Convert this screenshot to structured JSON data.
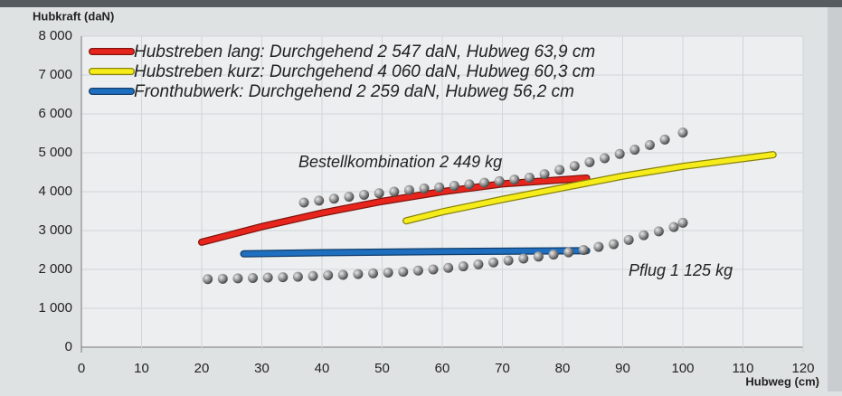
{
  "chart_data": {
    "type": "line",
    "y_label": "Hubkraft (daN)",
    "x_label": "Hubweg (cm)",
    "xlim": [
      0,
      120
    ],
    "xticks": [
      0,
      10,
      20,
      30,
      40,
      50,
      60,
      70,
      80,
      90,
      100,
      110,
      120
    ],
    "ylim": [
      0,
      8000
    ],
    "yticks": [
      0,
      {
        "value": 1000,
        "label": "1 000"
      },
      {
        "value": 2000,
        "label": "2 000"
      },
      {
        "value": 3000,
        "label": "3 000"
      },
      {
        "value": 4000,
        "label": "4 000"
      },
      {
        "value": 5000,
        "label": "5 000"
      },
      {
        "value": 6000,
        "label": "6 000"
      },
      {
        "value": 7000,
        "label": "7 000"
      },
      {
        "value": 8000,
        "label": "8 000"
      }
    ],
    "grid": true,
    "series": [
      {
        "name": "Hubstreben lang: Durchgehend 2 547 daN, Hubweg 63,9 cm",
        "color": "#e8251c",
        "x": [
          20,
          30,
          40,
          50,
          60,
          70,
          84
        ],
        "values": [
          2700,
          3100,
          3450,
          3750,
          4000,
          4200,
          4350
        ]
      },
      {
        "name": "Hubstreben kurz: Durchgehend 4 060 daN, Hubweg 60,3 cm",
        "color": "#f5ec1a",
        "x": [
          54,
          60,
          70,
          80,
          90,
          100,
          115
        ],
        "values": [
          3250,
          3480,
          3800,
          4100,
          4400,
          4650,
          4950
        ]
      },
      {
        "name": "Fronthubwerk: Durchgehend 2 259 daN, Hubweg 56,2 cm",
        "color": "#1f6fc0",
        "x": [
          27,
          40,
          60,
          84
        ],
        "values": [
          2400,
          2430,
          2460,
          2480
        ]
      }
    ],
    "dot_series": [
      {
        "name": "Bestellkombination 2 449 kg",
        "color": "#8c8c8c",
        "x": [
          37,
          39.5,
          42,
          44.5,
          47,
          49.5,
          52,
          54.5,
          57,
          59.5,
          62,
          64.5,
          67,
          69.5,
          72,
          74.5,
          77,
          79.5,
          82,
          84.5,
          87,
          89.5,
          92,
          94.5,
          97,
          100
        ],
        "values": [
          3720,
          3770,
          3820,
          3870,
          3920,
          3960,
          4000,
          4040,
          4080,
          4110,
          4150,
          4190,
          4230,
          4270,
          4310,
          4360,
          4450,
          4560,
          4660,
          4760,
          4860,
          4970,
          5080,
          5200,
          5340,
          5520
        ]
      },
      {
        "name": "Pflug 1 125 kg",
        "color": "#8c8c8c",
        "x": [
          21,
          23.5,
          26,
          28.5,
          31,
          33.5,
          36,
          38.5,
          41,
          43.5,
          46,
          48.5,
          51,
          53.5,
          56,
          58.5,
          61,
          63.5,
          66,
          68.5,
          71,
          73.5,
          76,
          78.5,
          81,
          83.5,
          86,
          88.5,
          91,
          93.5,
          96,
          98.5,
          100
        ],
        "values": [
          1750,
          1760,
          1770,
          1780,
          1790,
          1800,
          1810,
          1830,
          1850,
          1860,
          1880,
          1900,
          1920,
          1940,
          1970,
          2000,
          2040,
          2080,
          2130,
          2180,
          2230,
          2280,
          2330,
          2380,
          2440,
          2500,
          2580,
          2650,
          2760,
          2880,
          2980,
          3090,
          3200
        ]
      }
    ]
  }
}
